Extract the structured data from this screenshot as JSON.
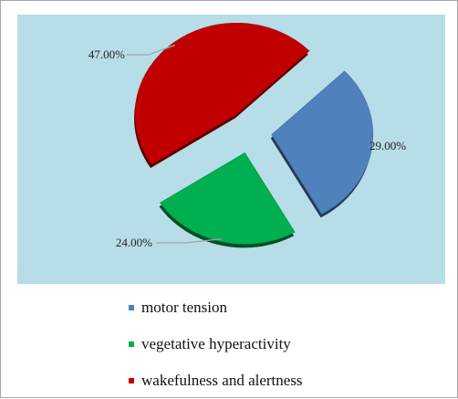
{
  "chart_data": {
    "type": "pie",
    "title": "",
    "series": [
      {
        "name": "motor tension",
        "value": 29.0,
        "label": "29.00%",
        "color": "#4f81bd"
      },
      {
        "name": "vegetative hyperactivity",
        "value": 24.0,
        "label": "24.00%",
        "color": "#00b050"
      },
      {
        "name": "wakefulness and alertness",
        "value": 47.0,
        "label": "47.00%",
        "color": "#c00000"
      }
    ],
    "exploded": true,
    "style": "3d-tilt",
    "legend_position": "bottom",
    "background_color": "#b7dde8"
  }
}
